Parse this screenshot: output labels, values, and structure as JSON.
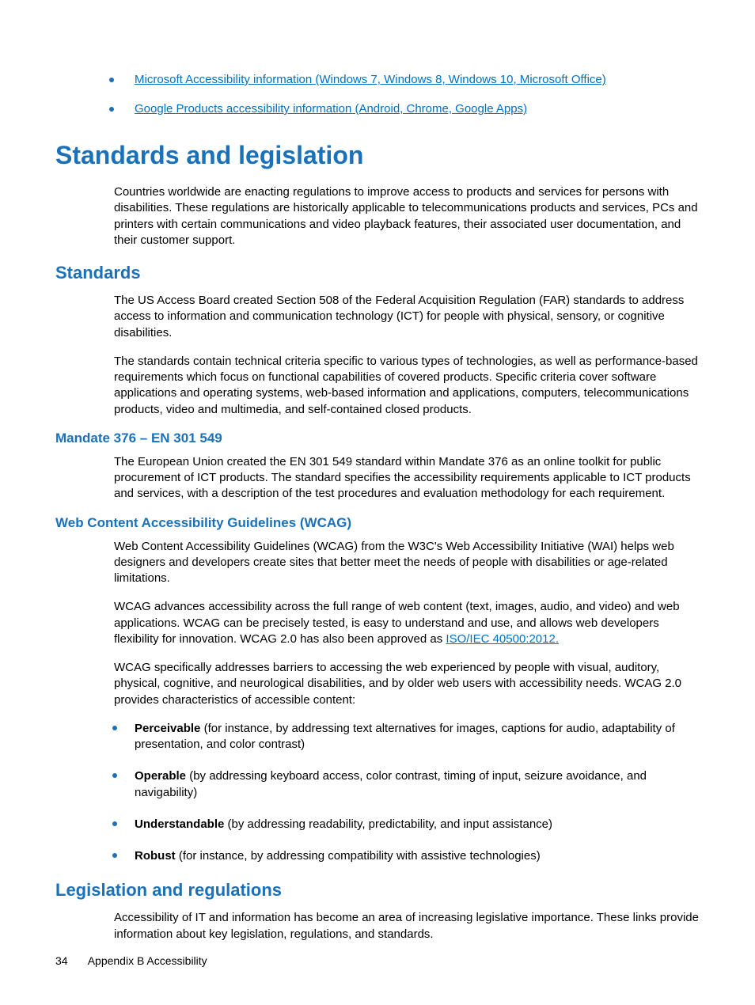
{
  "colors": {
    "heading": "#1a71ba",
    "link": "#0070c0",
    "bullet": "#1a71ba",
    "text": "#000000"
  },
  "topLinks": [
    "Microsoft Accessibility information (Windows 7, Windows 8, Windows 10, Microsoft Office)",
    "Google Products accessibility information (Android, Chrome, Google Apps)"
  ],
  "h1": "Standards and legislation",
  "intro": "Countries worldwide are enacting regulations to improve access to products and services for persons with disabilities. These regulations are historically applicable to telecommunications products and services, PCs and printers with certain communications and video playback features, their associated user documentation, and their customer support.",
  "standards": {
    "title": "Standards",
    "p1": "The US Access Board created Section 508 of the Federal Acquisition Regulation (FAR) standards to address access to information and communication technology (ICT) for people with physical, sensory, or cognitive disabilities.",
    "p2": "The standards contain technical criteria specific to various types of technologies, as well as performance-based requirements which focus on functional capabilities of covered products. Specific criteria cover software applications and operating systems, web-based information and applications, computers, telecommunications products, video and multimedia, and self-contained closed products."
  },
  "mandate": {
    "title": "Mandate 376 – EN 301 549",
    "p1": "The European Union created the EN 301 549 standard within Mandate 376 as an online toolkit for public procurement of ICT products. The standard specifies the accessibility requirements applicable to ICT products and services, with a description of the test procedures and evaluation methodology for each requirement."
  },
  "wcag": {
    "title": "Web Content Accessibility Guidelines (WCAG)",
    "p1": "Web Content Accessibility Guidelines (WCAG) from the W3C's Web Accessibility Initiative (WAI) helps web designers and developers create sites that better meet the needs of people with disabilities or age-related limitations.",
    "p2_pre": "WCAG advances accessibility across the full range of web content (text, images, audio, and video) and web applications. WCAG can be precisely tested, is easy to understand and use, and allows web developers flexibility for innovation. WCAG 2.0 has also been approved as ",
    "p2_link": "ISO/IEC 40500:2012.",
    "p3": "WCAG specifically addresses barriers to accessing the web experienced by people with visual, auditory, physical, cognitive, and neurological disabilities, and by older web users with accessibility needs. WCAG 2.0 provides characteristics of accessible content:",
    "items": [
      {
        "term": "Perceivable",
        "rest": " (for instance, by addressing text alternatives for images, captions for audio, adaptability of presentation, and color contrast)"
      },
      {
        "term": "Operable",
        "rest": " (by addressing keyboard access, color contrast, timing of input, seizure avoidance, and navigability)"
      },
      {
        "term": "Understandable",
        "rest": " (by addressing readability, predictability, and input assistance)"
      },
      {
        "term": "Robust",
        "rest": " (for instance, by addressing compatibility with assistive technologies)"
      }
    ]
  },
  "legislation": {
    "title": "Legislation and regulations",
    "p1": "Accessibility of IT and information has become an area of increasing legislative importance. These links provide information about key legislation, regulations, and standards."
  },
  "footer": {
    "page": "34",
    "section": "Appendix B   Accessibility"
  }
}
